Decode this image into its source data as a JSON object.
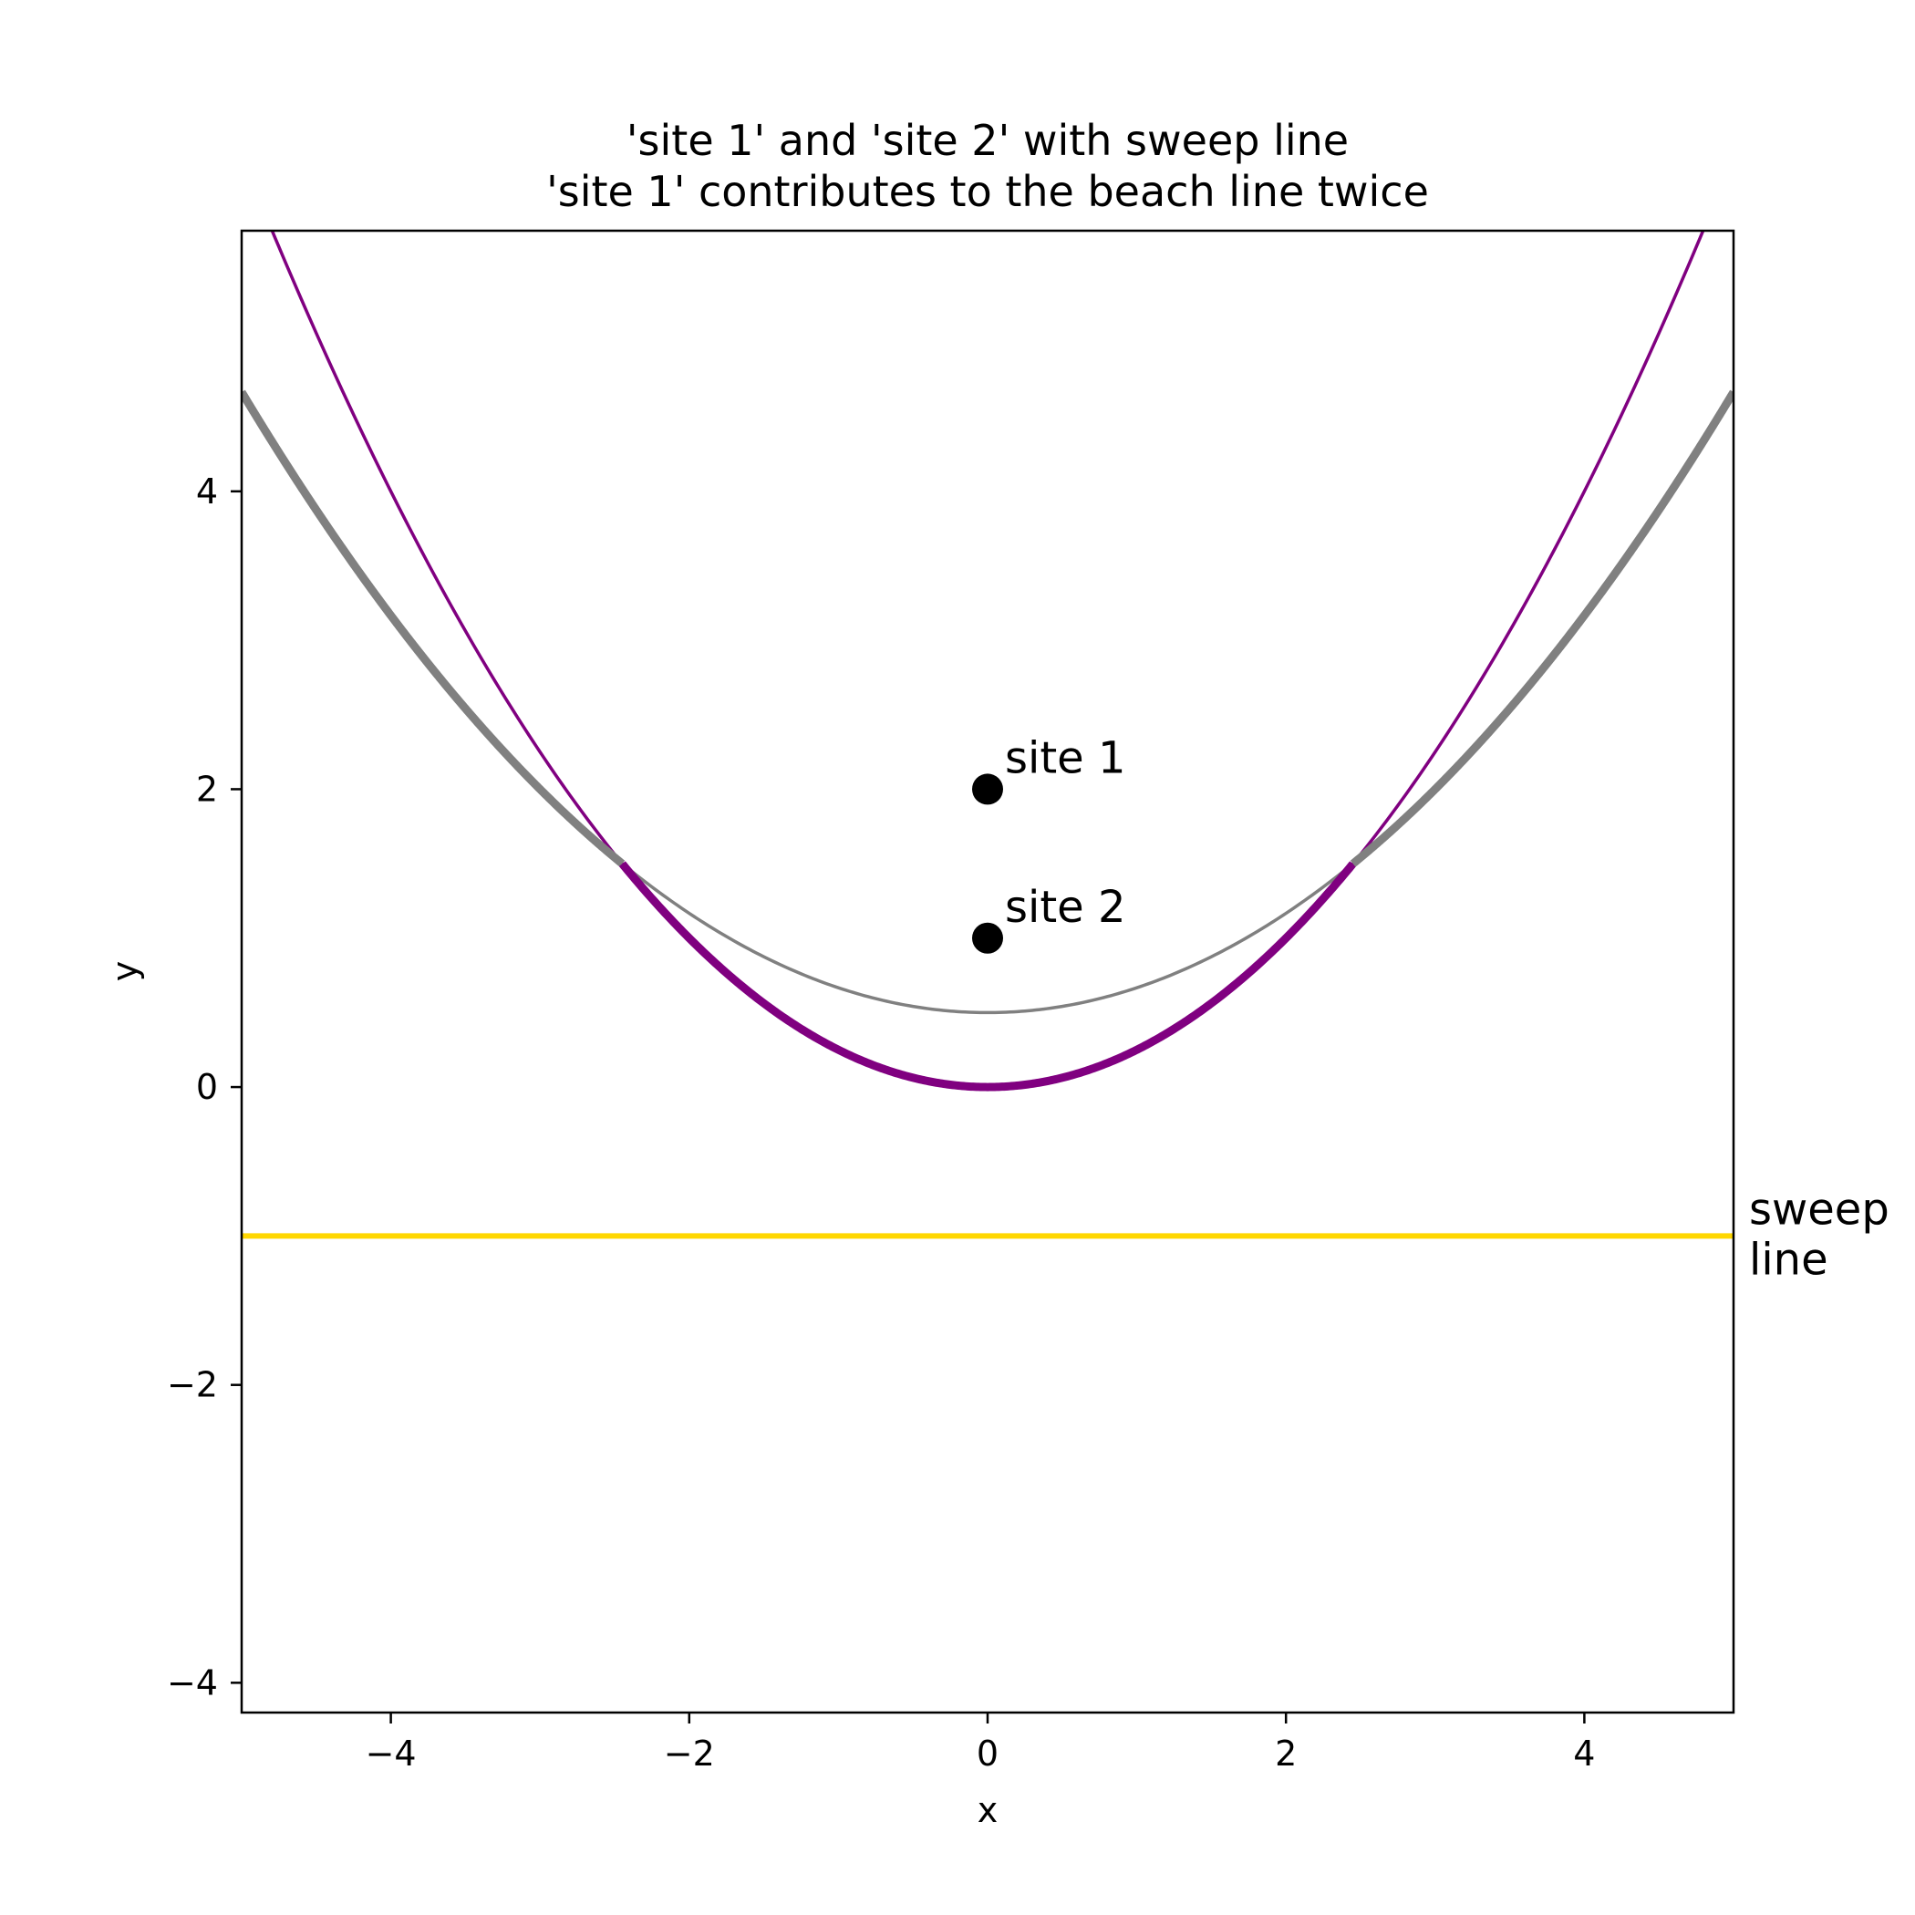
{
  "chart_data": {
    "type": "line",
    "title": "'site 1' and 'site 2' with sweep line\n'site 1' contributes to the beach line twice",
    "xlabel": "x",
    "ylabel": "y",
    "xlim": [
      -5,
      5
    ],
    "ylim": [
      -4.2,
      5.75
    ],
    "xticks": [
      -4,
      -2,
      0,
      2,
      4
    ],
    "yticks": [
      -4,
      -2,
      0,
      2,
      4
    ],
    "xtick_labels": [
      "−4",
      "−2",
      "0",
      "2",
      "4"
    ],
    "ytick_labels": [
      "−4",
      "−2",
      "0",
      "2",
      "4"
    ],
    "grid": false,
    "sites": [
      {
        "label": "site 1",
        "x": 0,
        "y": 2,
        "color": "#000000"
      },
      {
        "label": "site 2",
        "x": 0,
        "y": 1,
        "color": "#000000"
      }
    ],
    "sweep_line": {
      "label": "sweep\nline",
      "y": -1,
      "color": "#ffd700"
    },
    "parabolas": [
      {
        "focus": "site 1",
        "vertex_y": 0.5,
        "color": "#808080"
      },
      {
        "focus": "site 2",
        "vertex_y": 0,
        "color": "#800080"
      }
    ],
    "beach_line_breakpoints_x": [
      -2.449,
      2.449
    ]
  }
}
